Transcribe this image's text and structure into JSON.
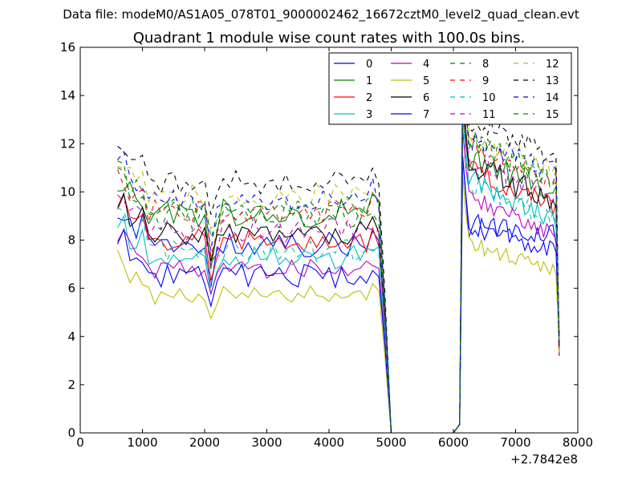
{
  "figure": {
    "suptitle": "Data file: modeM0/AS1A05_078T01_9000002462_16672cztM0_level2_quad_clean.evt",
    "title": "Quadrant 1 module wise count rates with 100.0s bins.",
    "x_offset_label": "+2.7842e8"
  },
  "chart_data": {
    "type": "line",
    "title": "Quadrant 1 module wise count rates with 100.0s bins.",
    "xlabel": "",
    "ylabel": "",
    "xlim": [
      0,
      8000
    ],
    "ylim": [
      0,
      16
    ],
    "xticks": [
      0,
      1000,
      2000,
      3000,
      4000,
      5000,
      6000,
      7000,
      8000
    ],
    "yticks": [
      0,
      2,
      4,
      6,
      8,
      10,
      12,
      14,
      16
    ],
    "xtick_labels": [
      "0",
      "1000",
      "2000",
      "3000",
      "4000",
      "5000",
      "6000",
      "7000",
      "8000"
    ],
    "ytick_labels": [
      "0",
      "2",
      "4",
      "6",
      "8",
      "10",
      "12",
      "14",
      "16"
    ],
    "x_offset": 278420000,
    "grid": false,
    "legend_position": "top-right",
    "segments": [
      {
        "x_start": 600,
        "x_end": 4800,
        "step": 100
      },
      {
        "x_end_points": [
          4900,
          5000,
          5100,
          5200,
          5300,
          5400,
          5500,
          5600,
          5700,
          5800,
          5900,
          6000,
          6100
        ]
      },
      {
        "x_start": 6150,
        "x_end": 7700,
        "step": 50
      }
    ],
    "series": [
      {
        "name": "0",
        "color": "#0000ff",
        "dash": "solid",
        "level1": 7.8,
        "level2": 8.6,
        "amp": 0.6,
        "dip": 1.5
      },
      {
        "name": "1",
        "color": "#008000",
        "dash": "solid",
        "level1": 9.1,
        "level2": 11.4,
        "amp": 0.6,
        "dip": 1.8
      },
      {
        "name": "2",
        "color": "#ff0000",
        "dash": "solid",
        "level1": 8.0,
        "level2": 10.9,
        "amp": 0.5,
        "dip": 1.5
      },
      {
        "name": "3",
        "color": "#00bfbf",
        "dash": "solid",
        "level1": 7.3,
        "level2": 10.5,
        "amp": 0.5,
        "dip": 1.3
      },
      {
        "name": "4",
        "color": "#bf00bf",
        "dash": "solid",
        "level1": 6.8,
        "level2": 9.8,
        "amp": 0.4,
        "dip": 1.2
      },
      {
        "name": "5",
        "color": "#bfbf00",
        "dash": "solid",
        "level1": 5.7,
        "level2": 7.9,
        "amp": 0.4,
        "dip": 1.0
      },
      {
        "name": "6",
        "color": "#000000",
        "dash": "solid",
        "level1": 8.3,
        "level2": 11.2,
        "amp": 0.6,
        "dip": 1.6
      },
      {
        "name": "7",
        "color": "#0000ff",
        "dash": "solid",
        "level1": 6.5,
        "level2": 8.7,
        "amp": 0.5,
        "dip": 1.2
      },
      {
        "name": "8",
        "color": "#008000",
        "dash": "dashed",
        "level1": 9.0,
        "level2": 12.1,
        "amp": 0.6,
        "dip": 1.7
      },
      {
        "name": "9",
        "color": "#ff0000",
        "dash": "dashed",
        "level1": 9.2,
        "level2": 12.0,
        "amp": 0.5,
        "dip": 1.6
      },
      {
        "name": "10",
        "color": "#00bfbf",
        "dash": "dashed",
        "level1": 7.6,
        "level2": 10.3,
        "amp": 0.5,
        "dip": 1.4
      },
      {
        "name": "11",
        "color": "#bf00bf",
        "dash": "dashed",
        "level1": 8.4,
        "level2": 11.3,
        "amp": 0.5,
        "dip": 1.5
      },
      {
        "name": "12",
        "color": "#bfbf00",
        "dash": "dashed",
        "level1": 9.8,
        "level2": 12.3,
        "amp": 0.5,
        "dip": 1.7
      },
      {
        "name": "13",
        "color": "#000000",
        "dash": "dashed",
        "level1": 10.4,
        "level2": 12.9,
        "amp": 0.5,
        "dip": 1.8
      },
      {
        "name": "14",
        "color": "#0000ff",
        "dash": "dashed",
        "level1": 9.7,
        "level2": 12.2,
        "amp": 0.5,
        "dip": 1.7
      },
      {
        "name": "15",
        "color": "#008000",
        "dash": "dashed",
        "level1": 9.3,
        "level2": 12.1,
        "amp": 0.5,
        "dip": 1.6
      }
    ]
  }
}
